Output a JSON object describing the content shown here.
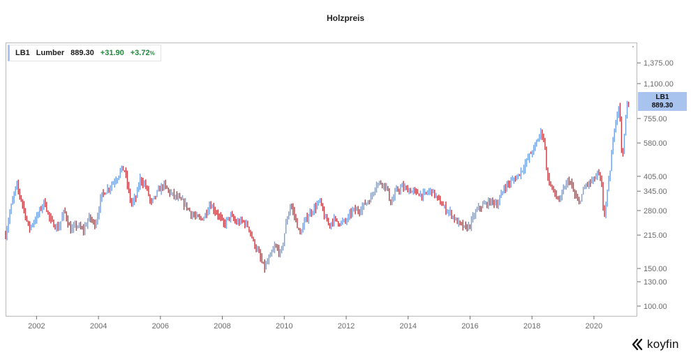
{
  "chart_data": {
    "type": "bar",
    "subtype": "ohlc-price",
    "title": "Holzpreis",
    "scale": "log",
    "ylim": [
      90,
      1700
    ],
    "xlim": [
      2001.0,
      2021.4
    ],
    "y_ticks": [
      100,
      130,
      150,
      215,
      280,
      345,
      405,
      580,
      755,
      1100,
      1375
    ],
    "y_tick_labels": [
      "100.00",
      "130.00",
      "150.00",
      "215.00",
      "280.00",
      "345.00",
      "405.00",
      "580.00",
      "755.00",
      "1,100.00",
      "1,375.00"
    ],
    "x_ticks": [
      2002,
      2004,
      2006,
      2008,
      2010,
      2012,
      2014,
      2016,
      2018,
      2020
    ],
    "x_tick_labels": [
      "2002",
      "2004",
      "2006",
      "2008",
      "2010",
      "2012",
      "2014",
      "2016",
      "2018",
      "2020"
    ],
    "grid": false,
    "legend_position": "top-left",
    "series": [
      {
        "name": "LB1",
        "x": [
          2001.0,
          2001.15,
          2001.35,
          2001.55,
          2001.75,
          2002.0,
          2002.25,
          2002.45,
          2002.7,
          2002.9,
          2003.1,
          2003.3,
          2003.5,
          2003.7,
          2003.9,
          2004.1,
          2004.35,
          2004.6,
          2004.75,
          2004.85,
          2005.05,
          2005.2,
          2005.35,
          2005.55,
          2005.7,
          2005.9,
          2006.1,
          2006.3,
          2006.55,
          2006.8,
          2007.0,
          2007.25,
          2007.4,
          2007.6,
          2007.85,
          2008.05,
          2008.25,
          2008.45,
          2008.65,
          2008.85,
          2009.0,
          2009.15,
          2009.35,
          2009.5,
          2009.7,
          2009.9,
          2010.05,
          2010.2,
          2010.35,
          2010.5,
          2010.7,
          2010.85,
          2011.0,
          2011.15,
          2011.3,
          2011.45,
          2011.6,
          2011.8,
          2012.0,
          2012.2,
          2012.4,
          2012.6,
          2012.8,
          2012.95,
          2013.15,
          2013.3,
          2013.45,
          2013.6,
          2013.8,
          2014.0,
          2014.25,
          2014.5,
          2014.75,
          2015.0,
          2015.2,
          2015.4,
          2015.55,
          2015.7,
          2015.85,
          2016.0,
          2016.15,
          2016.3,
          2016.5,
          2016.7,
          2016.9,
          2017.1,
          2017.3,
          2017.5,
          2017.7,
          2017.9,
          2018.1,
          2018.3,
          2018.4,
          2018.5,
          2018.6,
          2018.75,
          2018.9,
          2019.05,
          2019.2,
          2019.35,
          2019.5,
          2019.6,
          2019.75,
          2019.9,
          2020.05,
          2020.15,
          2020.25,
          2020.32,
          2020.4,
          2020.5,
          2020.6,
          2020.68,
          2020.75,
          2020.82,
          2020.9,
          2020.97,
          2021.05,
          2021.12
        ],
        "values": [
          215,
          280,
          370,
          300,
          230,
          260,
          310,
          250,
          230,
          280,
          225,
          240,
          225,
          260,
          240,
          330,
          360,
          400,
          440,
          430,
          300,
          320,
          395,
          360,
          300,
          340,
          370,
          340,
          320,
          300,
          270,
          255,
          260,
          300,
          270,
          240,
          265,
          245,
          250,
          235,
          200,
          180,
          150,
          165,
          190,
          175,
          240,
          300,
          260,
          215,
          255,
          275,
          290,
          310,
          260,
          240,
          255,
          245,
          250,
          280,
          280,
          300,
          320,
          370,
          380,
          360,
          300,
          345,
          360,
          350,
          340,
          330,
          350,
          310,
          285,
          270,
          250,
          240,
          230,
          240,
          270,
          290,
          300,
          310,
          300,
          360,
          380,
          400,
          440,
          500,
          560,
          660,
          590,
          400,
          370,
          330,
          310,
          360,
          390,
          340,
          300,
          330,
          370,
          380,
          400,
          420,
          360,
          260,
          310,
          400,
          560,
          720,
          800,
          910,
          500,
          580,
          850,
          889.3
        ]
      }
    ],
    "last_price_label": "889.30"
  },
  "legend": {
    "symbol": "LB1",
    "name": "Lumber",
    "last": "889.30",
    "change": "+31.90",
    "change_pct": "+3.72",
    "pct_sign": "%"
  },
  "price_tag": {
    "symbol": "LB1",
    "value": "889.30"
  },
  "logo": {
    "text": "koyfin"
  },
  "colors": {
    "bar_down": "#c8373d",
    "bar_up": "#6f9fe6",
    "axis_text": "#6b6b6b",
    "frame": "#b9b9b9",
    "price_tag": "#a9c3ef",
    "change_positive": "#1f8a3b"
  }
}
